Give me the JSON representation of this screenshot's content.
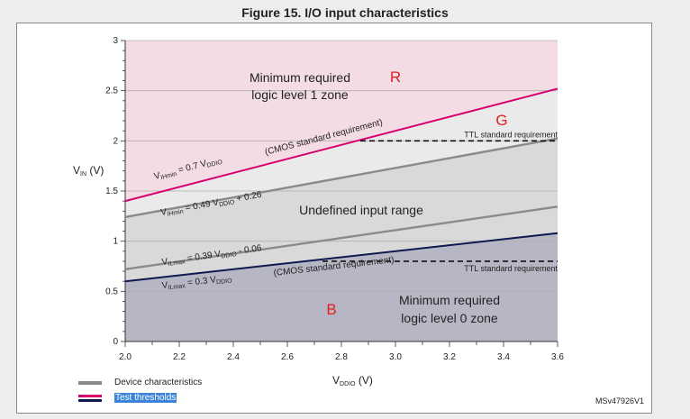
{
  "figure_title": "Figure 15. I/O input characteristics",
  "figure_id": "MSv47926V1",
  "legend": [
    {
      "label": "Device characteristics",
      "color": "#8a8a8a",
      "style": "single"
    },
    {
      "label": "Test thresholds",
      "color": "#d6006f",
      "color2": "#0d1a4f",
      "style": "double",
      "highlighted": true
    }
  ],
  "chart_data": {
    "type": "line",
    "title": "Figure 15. I/O input characteristics",
    "xlabel": {
      "main": "V",
      "sub": "DDIO",
      "unit": " (V)"
    },
    "ylabel": {
      "main": "V",
      "sub": "IN",
      "unit": " (V)"
    },
    "xlim": [
      2.0,
      3.6
    ],
    "ylim": [
      0,
      3
    ],
    "xticks": [
      2.0,
      2.2,
      2.4,
      2.6,
      2.8,
      3.0,
      3.2,
      3.4,
      3.6
    ],
    "xtick_labels": [
      "2.0",
      "2.2",
      "2.4",
      "2.6",
      "2.8",
      "3.0",
      "3.2",
      "3.4",
      "3.6"
    ],
    "yticks": [
      0,
      0.5,
      1,
      1.5,
      2,
      2.5,
      3
    ],
    "ytick_labels": [
      "0",
      "0.5",
      "1",
      "1.5",
      "2",
      "2.5",
      "3"
    ],
    "grid": true,
    "series": [
      {
        "name": "VIHmin = 0.7 VDDIO",
        "kind": "test",
        "color": "#d6006f",
        "x": [
          2.0,
          3.6
        ],
        "y": [
          1.4,
          2.52
        ]
      },
      {
        "name": "VIHmin = 0.49 VDDIO + 0.26",
        "kind": "device",
        "color": "#8a8a8a",
        "x": [
          2.0,
          3.6
        ],
        "y": [
          1.24,
          2.024
        ]
      },
      {
        "name": "VILmax = 0.39 VDDIO - 0.06",
        "kind": "device",
        "color": "#8a8a8a",
        "x": [
          2.0,
          3.6
        ],
        "y": [
          0.72,
          1.344
        ]
      },
      {
        "name": "VILmax = 0.3 VDDIO",
        "kind": "test",
        "color": "#0d1a4f",
        "x": [
          2.0,
          3.6
        ],
        "y": [
          0.6,
          1.08
        ]
      }
    ],
    "thresholds": [
      {
        "label": "TTL standard requirement",
        "y": 2.0,
        "x_from": 2.87,
        "x_to": 3.6
      },
      {
        "label": "TTL standard requirement",
        "y": 0.8,
        "x_from": 2.73,
        "x_to": 3.6
      }
    ],
    "regions": [
      {
        "name": "R",
        "label_line1": "Minimum required",
        "label_line2": "logic level 1 zone",
        "fill": "#f4dce4"
      },
      {
        "name": "G",
        "fill": "#eaeaea"
      },
      {
        "name": "undefined",
        "label": "Undefined input range",
        "fill": "#d9d9d9"
      },
      {
        "name": "B",
        "label_line1": "Minimum required",
        "label_line2": "logic level 0 zone",
        "fill": "#b6b6c4"
      }
    ],
    "annotations": {
      "region_letters": {
        "R": "R",
        "G": "G",
        "B": "B"
      },
      "letter_color": "#e02020",
      "cmos_upper": "(CMOS standard requirement)",
      "cmos_lower": "(CMOS standard requirement)",
      "eq_vih_test": {
        "pre": "V",
        "sub": "IHmin",
        "post": " = 0.7 V",
        "sub2": "DDIO",
        "tail": ""
      },
      "eq_vih_dev": {
        "pre": "V",
        "sub": "IHmin",
        "post": " = 0.49 V",
        "sub2": "DDIO",
        "tail": " + 0.26"
      },
      "eq_vil_dev": {
        "pre": "V",
        "sub": "ILmax",
        "post": " = 0.39 V",
        "sub2": "DDIO",
        "tail": " - 0.06"
      },
      "eq_vil_test": {
        "pre": "V",
        "sub": "ILmax",
        "post": " = 0.3 V",
        "sub2": "DDIO",
        "tail": ""
      }
    }
  }
}
